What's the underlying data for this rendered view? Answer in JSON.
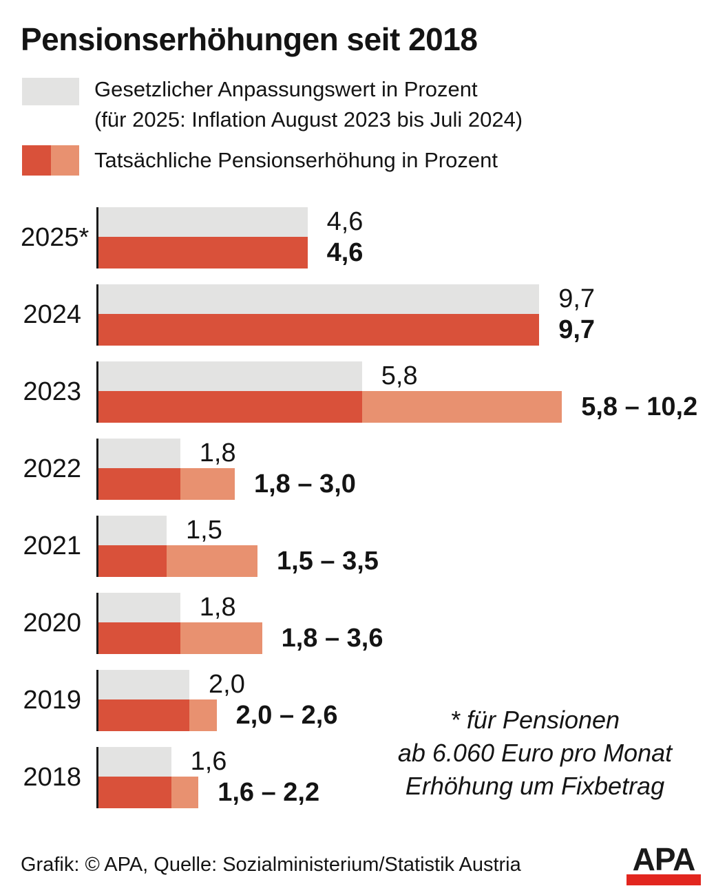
{
  "title": "Pensionserhöhungen seit 2018",
  "legend": {
    "statutory": {
      "line1": "Gesetzlicher Anpassungswert in Prozent",
      "line2": "(für 2025: Inflation August 2023 bis Juli 2024)"
    },
    "actual": {
      "label": "Tatsächliche Pensionserhöhung in Prozent"
    }
  },
  "colors": {
    "gray_bar": "#e3e3e2",
    "dark_red_bar": "#d9513a",
    "light_red_bar": "#e89170",
    "logo_red": "#e2261f"
  },
  "chart_data": {
    "type": "bar",
    "orientation": "horizontal",
    "unit": "Prozent",
    "xlim": [
      0,
      10.2
    ],
    "grid": false,
    "categories": [
      "2025*",
      "2024",
      "2023",
      "2022",
      "2021",
      "2020",
      "2019",
      "2018"
    ],
    "series": [
      {
        "name": "Gesetzlicher Anpassungswert in Prozent",
        "values": [
          4.6,
          9.7,
          5.8,
          1.8,
          1.5,
          1.8,
          2.0,
          1.6
        ]
      },
      {
        "name": "Tatsächliche Pensionserhöhung in Prozent (Minimum)",
        "values": [
          4.6,
          9.7,
          5.8,
          1.8,
          1.5,
          1.8,
          2.0,
          1.6
        ]
      },
      {
        "name": "Tatsächliche Pensionserhöhung in Prozent (Maximum)",
        "values": [
          4.6,
          9.7,
          10.2,
          3.0,
          3.5,
          3.6,
          2.6,
          2.2
        ]
      }
    ],
    "value_labels": {
      "statutory": [
        "4,6",
        "9,7",
        "5,8",
        "1,8",
        "1,5",
        "1,8",
        "2,0",
        "1,6"
      ],
      "actual": [
        "4,6",
        "9,7",
        "5,8 – 10,2",
        "1,8 – 3,0",
        "1,5 – 3,5",
        "1,8 – 3,6",
        "2,0 – 2,6",
        "1,6 – 2,2"
      ]
    }
  },
  "note": {
    "lines": [
      "* für Pensionen",
      "ab 6.060 Euro pro Monat",
      "Erhöhung um Fixbetrag"
    ]
  },
  "footer": {
    "credit": "Grafik: © APA, Quelle: Sozialministerium/Statistik Austria",
    "logo_text": "APA"
  }
}
